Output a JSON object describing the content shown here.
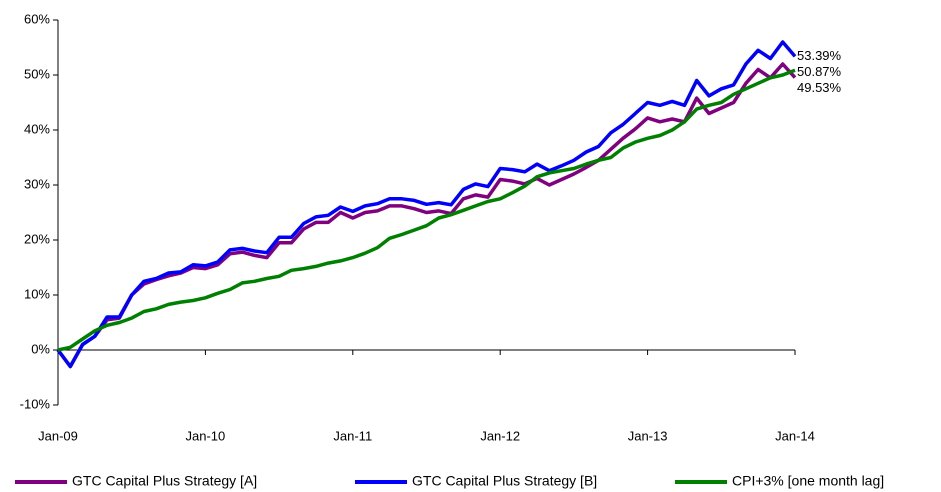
{
  "chart_data": {
    "type": "line",
    "categories": [
      "Jan-09",
      null,
      null,
      null,
      null,
      null,
      null,
      null,
      null,
      null,
      null,
      null,
      "Jan-10",
      null,
      null,
      null,
      null,
      null,
      null,
      null,
      null,
      null,
      null,
      null,
      "Jan-11",
      null,
      null,
      null,
      null,
      null,
      null,
      null,
      null,
      null,
      null,
      null,
      "Jan-12",
      null,
      null,
      null,
      null,
      null,
      null,
      null,
      null,
      null,
      null,
      null,
      "Jan-13",
      null,
      null,
      null,
      null,
      null,
      null,
      null,
      null,
      null,
      null,
      null,
      "Jan-14"
    ],
    "ylim": [
      -10,
      60
    ],
    "yticks": [
      {
        "value": -10,
        "label": "-10%"
      },
      {
        "value": 0,
        "label": "0%"
      },
      {
        "value": 10,
        "label": "10%"
      },
      {
        "value": 20,
        "label": "20%"
      },
      {
        "value": 30,
        "label": "30%"
      },
      {
        "value": 40,
        "label": "40%"
      },
      {
        "value": 50,
        "label": "50%"
      },
      {
        "value": 60,
        "label": "60%"
      }
    ],
    "grid": false,
    "legend": "bottom",
    "series": [
      {
        "name": "GTC Capital Plus Strategy [A]",
        "color": "#800080",
        "values": [
          0,
          -3,
          1,
          2.5,
          5.5,
          5.8,
          10,
          12,
          12.8,
          13.5,
          14,
          15,
          14.8,
          15.5,
          17.5,
          17.8,
          17.2,
          16.8,
          19.5,
          19.5,
          22,
          23.2,
          23.2,
          25,
          24,
          25,
          25.3,
          26.2,
          26.2,
          25.7,
          25,
          25.3,
          24.8,
          27.5,
          28.2,
          27.8,
          31,
          30.7,
          30.2,
          31.2,
          30,
          31,
          32,
          33.2,
          34.5,
          36.5,
          38.5,
          40.2,
          42.2,
          41.5,
          42,
          41.5,
          45.8,
          43,
          44,
          45,
          48.5,
          51,
          49.5,
          52,
          49.53
        ],
        "value_labels": [
          null,
          null,
          null,
          null,
          null,
          null,
          null,
          null,
          null,
          null,
          null,
          null,
          null,
          null,
          null,
          null,
          null,
          null,
          null,
          null,
          null,
          null,
          null,
          null,
          null,
          null,
          null,
          null,
          null,
          null,
          null,
          null,
          null,
          null,
          null,
          null,
          null,
          null,
          null,
          null,
          null,
          null,
          null,
          null,
          null,
          null,
          null,
          null,
          null,
          null,
          null,
          null,
          null,
          null,
          null,
          null,
          null,
          null,
          null,
          null,
          "49.53%"
        ]
      },
      {
        "name": "GTC Capital Plus Strategy [B]",
        "color": "#0000ff",
        "values": [
          0,
          -3,
          1,
          2.5,
          6,
          6,
          10,
          12.5,
          13,
          14,
          14.2,
          15.5,
          15.3,
          16,
          18.2,
          18.5,
          18,
          17.7,
          20.5,
          20.5,
          23,
          24.2,
          24.5,
          26,
          25.2,
          26.2,
          26.6,
          27.5,
          27.5,
          27.2,
          26.5,
          26.8,
          26.4,
          29.2,
          30.2,
          29.7,
          33,
          32.8,
          32.4,
          33.8,
          32.6,
          33.5,
          34.5,
          36,
          37,
          39.5,
          41,
          43,
          45,
          44.5,
          45.2,
          44.5,
          49,
          46.2,
          47.5,
          48.2,
          52,
          54.5,
          53,
          56,
          53.39
        ],
        "value_labels": [
          null,
          null,
          null,
          null,
          null,
          null,
          null,
          null,
          null,
          null,
          null,
          null,
          null,
          null,
          null,
          null,
          null,
          null,
          null,
          null,
          null,
          null,
          null,
          null,
          null,
          null,
          null,
          null,
          null,
          null,
          null,
          null,
          null,
          null,
          null,
          null,
          null,
          null,
          null,
          null,
          null,
          null,
          null,
          null,
          null,
          null,
          null,
          null,
          null,
          null,
          null,
          null,
          null,
          null,
          null,
          null,
          null,
          null,
          null,
          null,
          "53.39%"
        ]
      },
      {
        "name": "CPI+3% [one month lag]",
        "color": "#008000",
        "values": [
          0,
          0.5,
          2,
          3.5,
          4.5,
          5,
          5.8,
          7,
          7.5,
          8.3,
          8.7,
          9,
          9.5,
          10.3,
          11,
          12.2,
          12.5,
          13,
          13.4,
          14.5,
          14.8,
          15.2,
          15.8,
          16.2,
          16.8,
          17.6,
          18.6,
          20.3,
          21,
          21.8,
          22.6,
          24,
          24.6,
          25.4,
          26.2,
          27,
          27.5,
          28.6,
          29.8,
          31.5,
          32.2,
          32.6,
          33,
          33.8,
          34.5,
          35,
          36.7,
          37.8,
          38.5,
          39,
          40,
          41.5,
          43.8,
          44.5,
          45,
          46.5,
          47.5,
          48.5,
          49.5,
          50,
          50.87
        ],
        "value_labels": [
          null,
          null,
          null,
          null,
          null,
          null,
          null,
          null,
          null,
          null,
          null,
          null,
          null,
          null,
          null,
          null,
          null,
          null,
          null,
          null,
          null,
          null,
          null,
          null,
          null,
          null,
          null,
          null,
          null,
          null,
          null,
          null,
          null,
          null,
          null,
          null,
          null,
          null,
          null,
          null,
          null,
          null,
          null,
          null,
          null,
          null,
          null,
          null,
          null,
          null,
          null,
          null,
          null,
          null,
          null,
          null,
          null,
          null,
          null,
          null,
          "50.87%"
        ]
      }
    ]
  }
}
